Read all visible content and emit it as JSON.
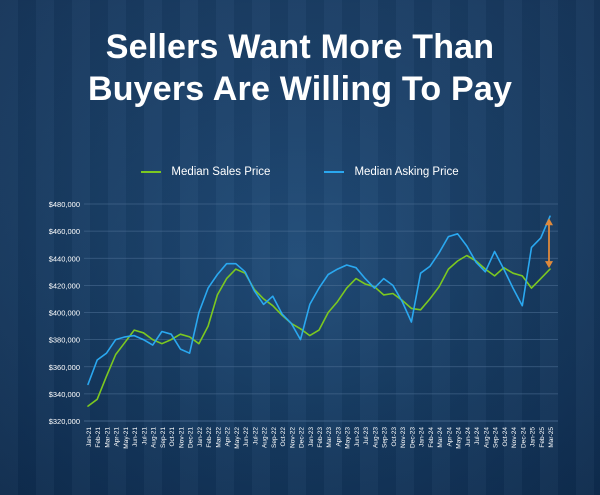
{
  "title_lines": [
    "Sellers Want More Than",
    "Buyers Are Willing To Pay"
  ],
  "colors": {
    "sales": "#7cc820",
    "asking": "#2aa8f0",
    "arrow": "#e08a3c",
    "grid": "#4f7196",
    "text": "#ffffff"
  },
  "chart_data": {
    "type": "line",
    "categories": [
      "Jan-21",
      "Feb-21",
      "Mar-21",
      "Apr-21",
      "May-21",
      "Jun-21",
      "Jul-21",
      "Aug-21",
      "Sep-21",
      "Oct-21",
      "Nov-21",
      "Dec-21",
      "Jan-22",
      "Feb-22",
      "Mar-22",
      "Apr-22",
      "May-22",
      "Jun-22",
      "Jul-22",
      "Aug-22",
      "Sep-22",
      "Oct-22",
      "Nov-22",
      "Dec-22",
      "Jan-23",
      "Feb-23",
      "Mar-23",
      "Apr-23",
      "May-23",
      "Jun-23",
      "Jul-23",
      "Aug-23",
      "Sep-23",
      "Oct-23",
      "Nov-23",
      "Dec-23",
      "Jan-24",
      "Feb-24",
      "Mar-24",
      "Apr-24",
      "May-24",
      "Jun-24",
      "Jul-24",
      "Aug-24",
      "Sep-24",
      "Oct-24",
      "Nov-24",
      "Dec-24",
      "Jan-25",
      "Feb-25",
      "Mar-25"
    ],
    "series": [
      {
        "name": "Median Sales Price",
        "values": [
          331000,
          336000,
          353000,
          369000,
          378000,
          387000,
          385000,
          380000,
          377000,
          380000,
          384000,
          382000,
          377000,
          390000,
          413000,
          425000,
          432000,
          429000,
          417000,
          410000,
          405000,
          398000,
          392000,
          388000,
          383000,
          387000,
          400000,
          408000,
          418000,
          425000,
          421000,
          419000,
          413000,
          414000,
          409000,
          403000,
          402000,
          410000,
          419000,
          432000,
          438000,
          442000,
          438000,
          432000,
          427000,
          433000,
          429000,
          427000,
          418000,
          425000,
          432000
        ]
      },
      {
        "name": "Median Asking Price",
        "values": [
          347000,
          365000,
          370000,
          380000,
          382000,
          383000,
          380000,
          376000,
          386000,
          384000,
          373000,
          370000,
          400000,
          418000,
          428000,
          436000,
          436000,
          430000,
          416000,
          406000,
          412000,
          399000,
          392000,
          380000,
          406000,
          418000,
          428000,
          432000,
          435000,
          433000,
          425000,
          418000,
          425000,
          420000,
          408000,
          393000,
          429000,
          434000,
          444000,
          456000,
          458000,
          449000,
          437000,
          430000,
          445000,
          432000,
          418000,
          405000,
          448000,
          455000,
          471000
        ]
      }
    ],
    "yticks": [
      "$320,000",
      "$340,000",
      "$360,000",
      "$380,000",
      "$400,000",
      "$420,000",
      "$440,000",
      "$460,000",
      "$480,000"
    ],
    "ylim": [
      320000,
      480000
    ],
    "legend_position": "top-center",
    "gap_arrow": {
      "category": "Mar-25",
      "from": 432000,
      "to": 471000
    }
  }
}
